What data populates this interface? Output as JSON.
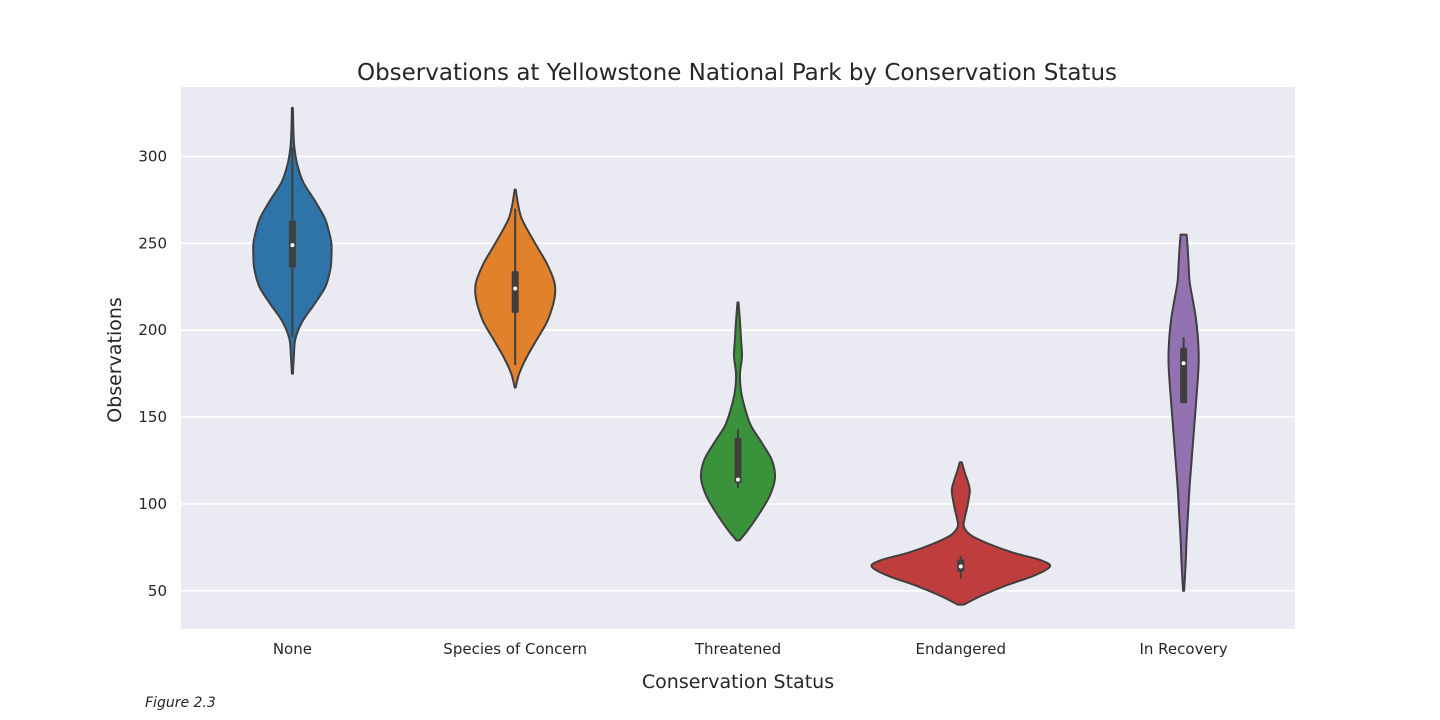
{
  "chart_data": {
    "type": "violin",
    "title": "Observations at Yellowstone National Park by Conservation Status",
    "xlabel": "Conservation Status",
    "ylabel": "Observations",
    "ylim": [
      28,
      340
    ],
    "yticks": [
      50,
      100,
      150,
      200,
      250,
      300
    ],
    "grid": true,
    "background": "#eaeaf2",
    "categories": [
      "None",
      "Species of Concern",
      "Threatened",
      "Endangered",
      "In Recovery"
    ],
    "series": [
      {
        "category": "None",
        "color": "#2e74a9",
        "min": 175,
        "max": 328,
        "q1": 236,
        "median": 249,
        "q3": 263,
        "whisker_low": 196,
        "whisker_high": 305,
        "profile": [
          [
            175,
            0.5
          ],
          [
            185,
            1.5
          ],
          [
            195,
            3
          ],
          [
            205,
            10
          ],
          [
            215,
            22
          ],
          [
            225,
            33
          ],
          [
            235,
            38
          ],
          [
            242,
            39
          ],
          [
            250,
            39
          ],
          [
            258,
            36
          ],
          [
            265,
            32
          ],
          [
            275,
            22
          ],
          [
            285,
            11
          ],
          [
            295,
            5
          ],
          [
            305,
            2
          ],
          [
            315,
            1
          ],
          [
            328,
            0.5
          ]
        ]
      },
      {
        "category": "Species of Concern",
        "color": "#e1812c",
        "min": 167,
        "max": 281,
        "q1": 210,
        "median": 224,
        "q3": 234,
        "whisker_low": 180,
        "whisker_high": 270,
        "profile": [
          [
            167,
            0.5
          ],
          [
            175,
            4
          ],
          [
            185,
            12
          ],
          [
            195,
            22
          ],
          [
            205,
            32
          ],
          [
            215,
            38
          ],
          [
            222,
            40
          ],
          [
            228,
            39
          ],
          [
            238,
            32
          ],
          [
            248,
            22
          ],
          [
            258,
            12
          ],
          [
            265,
            6
          ],
          [
            272,
            3
          ],
          [
            281,
            0.5
          ]
        ]
      },
      {
        "category": "Threatened",
        "color": "#3a923a",
        "min": 79,
        "max": 216,
        "q1": 112,
        "median": 114,
        "q3": 138,
        "whisker_low": 109,
        "whisker_high": 143,
        "profile": [
          [
            79,
            1.5
          ],
          [
            85,
            10
          ],
          [
            95,
            22
          ],
          [
            105,
            32
          ],
          [
            115,
            37
          ],
          [
            125,
            34
          ],
          [
            135,
            24
          ],
          [
            145,
            13
          ],
          [
            155,
            7
          ],
          [
            165,
            3
          ],
          [
            175,
            2
          ],
          [
            185,
            4
          ],
          [
            195,
            3
          ],
          [
            205,
            2
          ],
          [
            216,
            0.5
          ]
        ]
      },
      {
        "category": "Endangered",
        "color": "#c03d3e",
        "min": 42,
        "max": 124,
        "q1": 61,
        "median": 64,
        "q3": 68,
        "whisker_low": 57,
        "whisker_high": 70,
        "profile": [
          [
            42,
            3
          ],
          [
            47,
            20
          ],
          [
            53,
            45
          ],
          [
            58,
            70
          ],
          [
            62,
            85
          ],
          [
            65,
            89
          ],
          [
            68,
            78
          ],
          [
            72,
            52
          ],
          [
            77,
            28
          ],
          [
            82,
            10
          ],
          [
            87,
            3
          ],
          [
            92,
            4
          ],
          [
            97,
            6
          ],
          [
            103,
            8
          ],
          [
            108,
            9
          ],
          [
            113,
            7
          ],
          [
            118,
            4
          ],
          [
            124,
            1
          ]
        ]
      },
      {
        "category": "In Recovery",
        "color": "#9372b2",
        "min": 50,
        "max": 255,
        "q1": 158,
        "median": 181,
        "q3": 190,
        "whisker_low": 158,
        "whisker_high": 196,
        "profile": [
          [
            50,
            0.5
          ],
          [
            65,
            2
          ],
          [
            80,
            3
          ],
          [
            95,
            4.5
          ],
          [
            110,
            6
          ],
          [
            125,
            8
          ],
          [
            140,
            10
          ],
          [
            155,
            12
          ],
          [
            170,
            14
          ],
          [
            180,
            15
          ],
          [
            188,
            15
          ],
          [
            198,
            14
          ],
          [
            208,
            12
          ],
          [
            218,
            9
          ],
          [
            228,
            6
          ],
          [
            238,
            5
          ],
          [
            248,
            4
          ],
          [
            255,
            3
          ]
        ]
      }
    ],
    "caption": "Figure 2.3"
  }
}
